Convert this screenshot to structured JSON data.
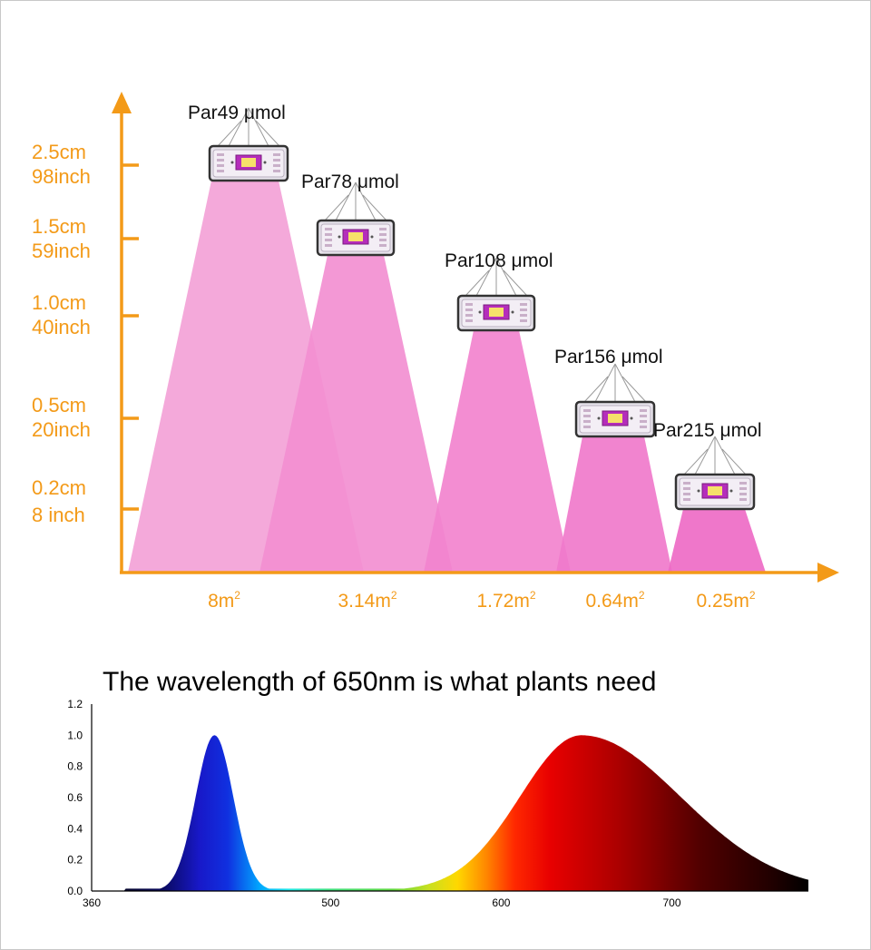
{
  "colors": {
    "axis": "#F39A18",
    "beams": [
      "#F4A9DA",
      "#F28FD1",
      "#F283CE",
      "#F07ACB",
      "#EE6BC6"
    ],
    "blue_peak": "#1E1ED8",
    "red_peak": "#E00000"
  },
  "chart_data": [
    {
      "type": "area",
      "title": "",
      "y_axis_labels": [
        {
          "cm": "2.5cm",
          "inch": "98inch",
          "level": 5
        },
        {
          "cm": "1.5cm",
          "inch": "59inch",
          "level": 4
        },
        {
          "cm": "1.0cm",
          "inch": "40inch",
          "level": 3
        },
        {
          "cm": "0.5cm",
          "inch": "20inch",
          "level": 2
        },
        {
          "cm": "0.2cm",
          "inch": "8 inch",
          "level": 1
        }
      ],
      "lamps": [
        {
          "par_prefix": "Par49",
          "par_unit": "μmol",
          "area_base": "8m",
          "area_sup": "2",
          "level": 5
        },
        {
          "par_prefix": "Par78",
          "par_unit": "μmol",
          "area_base": "3.14m",
          "area_sup": "2",
          "level": 4
        },
        {
          "par_prefix": "Par108",
          "par_unit": "μmol",
          "area_base": "1.72m",
          "area_sup": "2",
          "level": 3
        },
        {
          "par_prefix": "Par156",
          "par_unit": "μmol",
          "area_base": "0.64m",
          "area_sup": "2",
          "level": 2
        },
        {
          "par_prefix": "Par215",
          "par_unit": "μmol",
          "area_base": "0.25m",
          "area_sup": "2",
          "level": 1
        }
      ]
    },
    {
      "type": "area",
      "title": "The wavelength of 650nm is what plants need",
      "xlabel": "",
      "ylabel": "",
      "xlim": [
        360,
        780
      ],
      "ylim": [
        0,
        1.2
      ],
      "x_ticks": [
        "360",
        "500",
        "600",
        "700"
      ],
      "x_tick_values": [
        360,
        500,
        600,
        700
      ],
      "y_ticks": [
        "0.0",
        "0.2",
        "0.4",
        "0.6",
        "0.8",
        "1.0",
        "1.2"
      ],
      "y_tick_values": [
        0,
        0.2,
        0.4,
        0.6,
        0.8,
        1.0,
        1.2
      ],
      "series": [
        {
          "name": "blue peak",
          "peak_nm": 432,
          "peak_value": 1.0
        },
        {
          "name": "red peak",
          "peak_nm": 647,
          "peak_value": 1.0
        }
      ]
    }
  ]
}
